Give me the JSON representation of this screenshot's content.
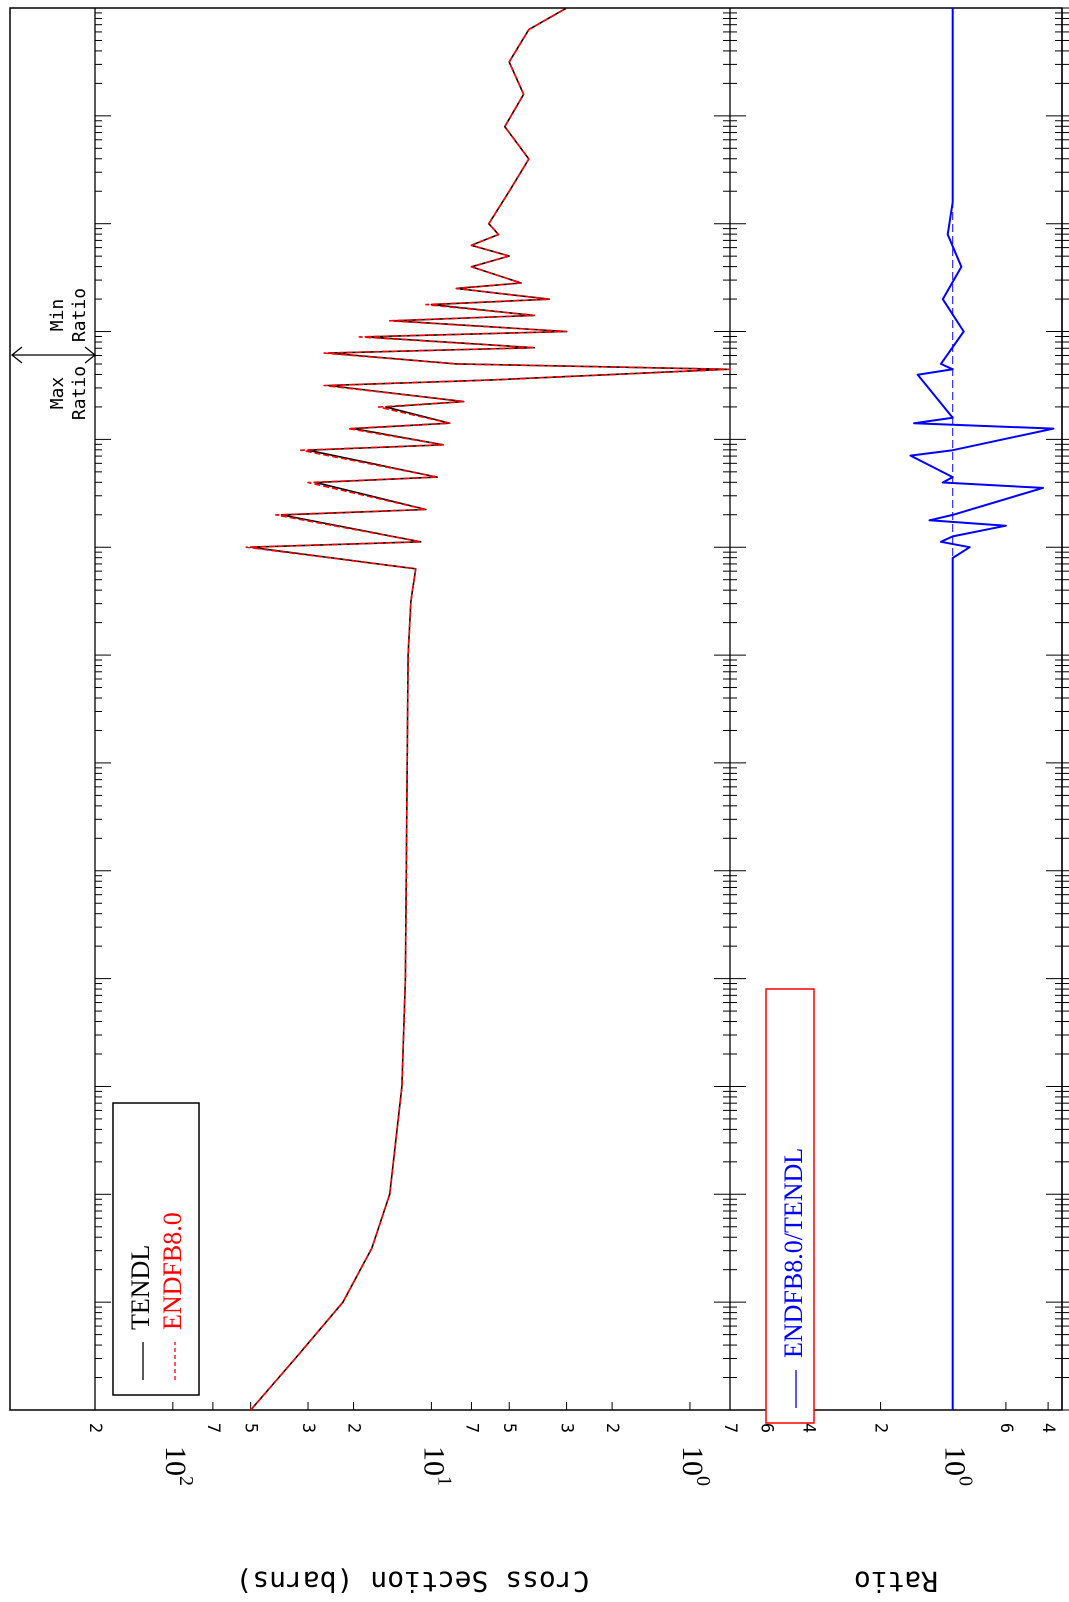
{
  "chart_data": [
    {
      "type": "line",
      "panel": "cross-section",
      "xscale": "log",
      "yscale": "log",
      "ylabel": "Cross Section (barns)",
      "ylim": [
        0.7,
        200
      ],
      "ytick_labels": [
        {
          "v": 200,
          "t": "2"
        },
        {
          "v": 100,
          "t": "10^2"
        },
        {
          "v": 70,
          "t": "7"
        },
        {
          "v": 50,
          "t": "5"
        },
        {
          "v": 30,
          "t": "3"
        },
        {
          "v": 20,
          "t": "2"
        },
        {
          "v": 10,
          "t": "10^1"
        },
        {
          "v": 7,
          "t": "7"
        },
        {
          "v": 5,
          "t": "5"
        },
        {
          "v": 3,
          "t": "3"
        },
        {
          "v": 2,
          "t": "2"
        },
        {
          "v": 1,
          "t": "10^0"
        },
        {
          "v": 0.7,
          "t": "7"
        }
      ],
      "legend": [
        "TENDL",
        "ENDFB8.0"
      ],
      "legend_position": "bottom-left (rotated view)",
      "series": [
        {
          "name": "TENDL",
          "color": "#000000",
          "style": "solid",
          "points": [
            [
              0,
              50.0
            ],
            [
              0.5,
              33.0
            ],
            [
              1.0,
              22.0
            ],
            [
              1.5,
              17.0
            ],
            [
              2.0,
              14.5
            ],
            [
              3.0,
              13.0
            ],
            [
              4.0,
              12.6
            ],
            [
              5.0,
              12.5
            ],
            [
              6.0,
              12.4
            ],
            [
              7.0,
              12.3
            ],
            [
              7.5,
              12.0
            ],
            [
              7.8,
              11.5
            ],
            [
              8.0,
              50.0
            ],
            [
              8.05,
              11.0
            ],
            [
              8.3,
              38.0
            ],
            [
              8.35,
              10.5
            ],
            [
              8.6,
              28.0
            ],
            [
              8.65,
              9.5
            ],
            [
              8.9,
              30.0
            ],
            [
              8.95,
              9.0
            ],
            [
              9.1,
              20.0
            ],
            [
              9.15,
              8.5
            ],
            [
              9.3,
              15.0
            ],
            [
              9.35,
              7.5
            ],
            [
              9.5,
              25.0
            ],
            [
              9.55,
              6.0
            ],
            [
              9.65,
              0.72
            ],
            [
              9.7,
              8.0
            ],
            [
              9.8,
              25.0
            ],
            [
              9.85,
              4.0
            ],
            [
              9.95,
              18.0
            ],
            [
              10.0,
              3.0
            ],
            [
              10.1,
              14.0
            ],
            [
              10.15,
              4.0
            ],
            [
              10.25,
              10.0
            ],
            [
              10.3,
              3.5
            ],
            [
              10.4,
              8.0
            ],
            [
              10.45,
              4.5
            ],
            [
              10.6,
              7.0
            ],
            [
              10.7,
              5.0
            ],
            [
              10.8,
              7.0
            ],
            [
              10.9,
              5.5
            ],
            [
              11.0,
              6.0
            ],
            [
              11.3,
              5.0
            ],
            [
              11.6,
              4.2
            ],
            [
              11.9,
              5.2
            ],
            [
              12.2,
              4.4
            ],
            [
              12.5,
              5.0
            ],
            [
              12.8,
              4.2
            ],
            [
              13.0,
              3.0
            ]
          ]
        },
        {
          "name": "ENDFB8.0",
          "color": "#ff0000",
          "style": "dashed",
          "points": [
            [
              0,
              50.0
            ],
            [
              0.5,
              33.0
            ],
            [
              1.0,
              22.0
            ],
            [
              1.5,
              17.0
            ],
            [
              2.0,
              14.5
            ],
            [
              3.0,
              13.0
            ],
            [
              4.0,
              12.6
            ],
            [
              5.0,
              12.5
            ],
            [
              6.0,
              12.4
            ],
            [
              7.0,
              12.3
            ],
            [
              7.5,
              12.0
            ],
            [
              7.8,
              11.5
            ],
            [
              8.0,
              52.0
            ],
            [
              8.05,
              11.0
            ],
            [
              8.3,
              40.0
            ],
            [
              8.35,
              10.5
            ],
            [
              8.6,
              30.0
            ],
            [
              8.65,
              9.5
            ],
            [
              8.9,
              32.0
            ],
            [
              8.95,
              9.0
            ],
            [
              9.1,
              21.0
            ],
            [
              9.15,
              8.5
            ],
            [
              9.3,
              16.0
            ],
            [
              9.35,
              7.5
            ],
            [
              9.5,
              26.0
            ],
            [
              9.55,
              6.0
            ],
            [
              9.65,
              0.7
            ],
            [
              9.7,
              8.0
            ],
            [
              9.8,
              26.0
            ],
            [
              9.85,
              4.0
            ],
            [
              9.95,
              19.0
            ],
            [
              10.0,
              3.0
            ],
            [
              10.1,
              14.5
            ],
            [
              10.15,
              4.0
            ],
            [
              10.25,
              10.5
            ],
            [
              10.3,
              3.5
            ],
            [
              10.4,
              8.0
            ],
            [
              10.45,
              4.5
            ],
            [
              10.6,
              7.0
            ],
            [
              10.7,
              5.0
            ],
            [
              10.8,
              7.0
            ],
            [
              10.9,
              5.5
            ],
            [
              11.0,
              6.0
            ],
            [
              11.3,
              5.0
            ],
            [
              11.6,
              4.2
            ],
            [
              11.9,
              5.2
            ],
            [
              12.2,
              4.4
            ],
            [
              12.5,
              5.0
            ],
            [
              12.8,
              4.2
            ],
            [
              13.0,
              3.0
            ]
          ]
        }
      ],
      "annotations": {
        "max_ratio": "Max\nRatio",
        "min_ratio": "Min\nRatio"
      }
    },
    {
      "type": "line",
      "panel": "ratio",
      "xscale": "log",
      "yscale": "log",
      "ylabel": "Ratio",
      "ylim": [
        0.35,
        8.5
      ],
      "ytick_labels": [
        {
          "v": 6,
          "t": "6"
        },
        {
          "v": 4,
          "t": "4"
        },
        {
          "v": 2,
          "t": "2"
        },
        {
          "v": 1,
          "t": "10^0"
        },
        {
          "v": 0.6,
          "t": "6"
        },
        {
          "v": 0.4,
          "t": "4"
        }
      ],
      "legend": [
        "ENDFB8.0/TENDL"
      ],
      "series": [
        {
          "name": "ENDFB8.0/TENDL",
          "color": "#0000ff",
          "style": "solid",
          "points": [
            [
              0,
              1.0
            ],
            [
              7.9,
              1.0
            ],
            [
              8.0,
              0.85
            ],
            [
              8.05,
              1.12
            ],
            [
              8.1,
              1.0
            ],
            [
              8.2,
              0.6
            ],
            [
              8.25,
              1.25
            ],
            [
              8.3,
              1.0
            ],
            [
              8.55,
              0.42
            ],
            [
              8.6,
              1.1
            ],
            [
              8.65,
              1.0
            ],
            [
              8.85,
              1.5
            ],
            [
              8.9,
              1.0
            ],
            [
              9.1,
              0.38
            ],
            [
              9.15,
              1.45
            ],
            [
              9.2,
              1.0
            ],
            [
              9.6,
              1.4
            ],
            [
              9.65,
              1.0
            ],
            [
              9.7,
              1.12
            ],
            [
              10.0,
              0.9
            ],
            [
              10.3,
              1.1
            ],
            [
              10.6,
              0.92
            ],
            [
              10.9,
              1.05
            ],
            [
              11.2,
              1.0
            ],
            [
              13.0,
              1.0
            ]
          ]
        }
      ]
    }
  ]
}
